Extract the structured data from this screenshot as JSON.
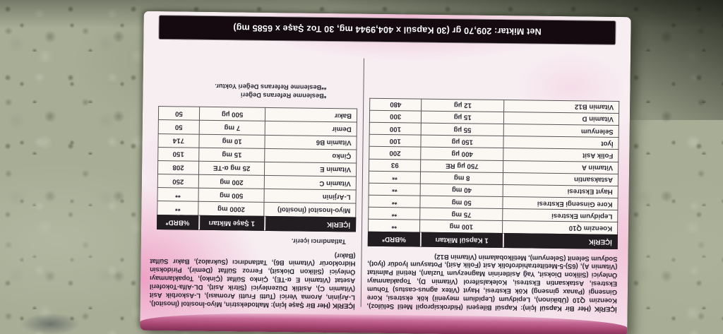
{
  "scene": {
    "description": "pink supplement box photographed upside down on a speckled granite countertop"
  },
  "net_amount_banner": "Net Miktar: 209,70 gr (30 Kapsül x 404,9944 mg, 30 Toz Şaşe x 6585 mg)",
  "capsule_section": {
    "ingredients": {
      "lead": "İÇERİK (Her Bir Kapsül İçin):",
      "body": " Kapsül Bileşeni (Hidroksipropil Metil Selüloz), Koenzim Q10 (Übikinon), Lepidyum (Lepidium meyenii) kök ekstresi, Kore Ginsengi (Panax ginseng) Kök Ekstresi, Hayıt (Vitex agnus-castus) Tohum Ekstresi, Astaksantin Ekstresi, Kolekalsiferol (Vitamin D), Topaklanmayı Önleyici (Silikon Dioksit, Yağ Asitlerinin Magnezyum Tuzları), Retinil Palmitat (Vitamin A), (6S)-5-Metiltetrahidrofolik Asit (Folik Asit), Potasyum İyodür (İyot), Sodyum Selenit (Selenyum), Metilkobalamin (Vitamin B12)"
    },
    "table": {
      "headers": [
        "İÇERİK",
        "1 Kapsül Miktarı",
        "%BRD*"
      ],
      "rows": [
        [
          "Koenzim Q10",
          "100 mg",
          "**"
        ],
        [
          "Lepidyum Ekstresi",
          "75 mg",
          "**"
        ],
        [
          "Kore Ginsengi Ekstresi",
          "50 mg",
          "**"
        ],
        [
          "Hayıt Ekstresi",
          "40 mg",
          "**"
        ],
        [
          "Astaksantin",
          "8 mg",
          "**"
        ],
        [
          "Vitamin A",
          "750 µg RE",
          "93"
        ],
        [
          "Folik Asit",
          "400 µg",
          "200"
        ],
        [
          "İyot",
          "150 µg",
          "100"
        ],
        [
          "Selenyum",
          "55 µg",
          "100"
        ],
        [
          "Vitamin D",
          "15 µg",
          "300"
        ],
        [
          "Vitamin B12",
          "12 µg",
          "480"
        ]
      ]
    }
  },
  "sachet_section": {
    "ingredients": {
      "lead": "İÇERİK (Her Bir Şaşe İçin):",
      "body": " Maltodekstrin, Miyo-İnositol (İnositol), L-Arjinin, Aroma Verici (Tutti Frutti Aroması), L-Askorbik Asit (Vitamin C), Asitlik Düzenleyici (Sitrik Asit), DL-Alfa-Tokoferil Asetat (Vitamin E α-TE), Çinko Sülfat (Çinko), Topaklanmayı Önleyici (Silikon Dioksit), Ferroz Sülfat (Demir), Piridoksin Hidroklorür (Vitamin B6), Tatlandırıcı (Sukraloz), Bakır Sülfat (Bakır)"
    },
    "sweetener_note": "Tatlandırıcı içerir.",
    "table": {
      "headers": [
        "İÇERİK",
        "1 Şaşe Miktarı",
        "%BRD*"
      ],
      "rows": [
        [
          "Miyo-İnositol (İnositol)",
          "2000 mg",
          "**"
        ],
        [
          "L-Arjinin",
          "500 mg",
          "**"
        ],
        [
          "Vitamin C",
          "200 mg",
          "250"
        ],
        [
          "Vitamin E",
          "25 mg α-TE",
          "208"
        ],
        [
          "Çinko",
          "15 mg",
          "150"
        ],
        [
          "Vitamin B6",
          "10 mg",
          "714"
        ],
        [
          "Demir",
          "7 mg",
          "50"
        ],
        [
          "Bakır",
          "500 µg",
          "50"
        ]
      ]
    },
    "footnotes": [
      "*Beslenme Referans Değeri",
      "**Beslenme Referans Değeri Yoktur."
    ]
  },
  "colors": {
    "granite": "#a8ad96",
    "box_pink": "#ec98c1",
    "lid_pink": "#a84672",
    "banner_black": "#150a10",
    "table_header": "#221d21"
  }
}
